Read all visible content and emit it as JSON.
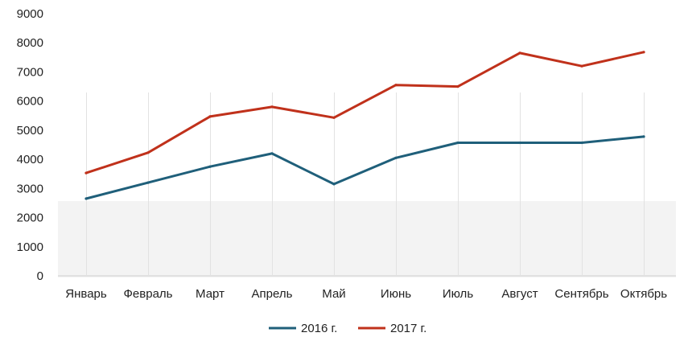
{
  "chart_data": {
    "type": "line",
    "categories": [
      "Январь",
      "Февраль",
      "Март",
      "Апрель",
      "Май",
      "Июнь",
      "Июль",
      "Август",
      "Сентябрь",
      "Октябрь"
    ],
    "series": [
      {
        "name": "2016 г.",
        "color": "#1f5f7a",
        "values": [
          2650,
          3200,
          3750,
          4200,
          3150,
          4050,
          4570,
          4570,
          4570,
          4780
        ]
      },
      {
        "name": "2017 г.",
        "color": "#c0311b",
        "values": [
          3530,
          4230,
          5470,
          5800,
          5430,
          6550,
          6500,
          7650,
          7200,
          7680
        ]
      }
    ],
    "yticks": [
      "0",
      "1000",
      "2000",
      "3000",
      "4000",
      "5000",
      "6000",
      "7000",
      "8000",
      "9000"
    ],
    "ylim": [
      0,
      9000
    ],
    "grid": "vertical",
    "legend": "bottom"
  }
}
